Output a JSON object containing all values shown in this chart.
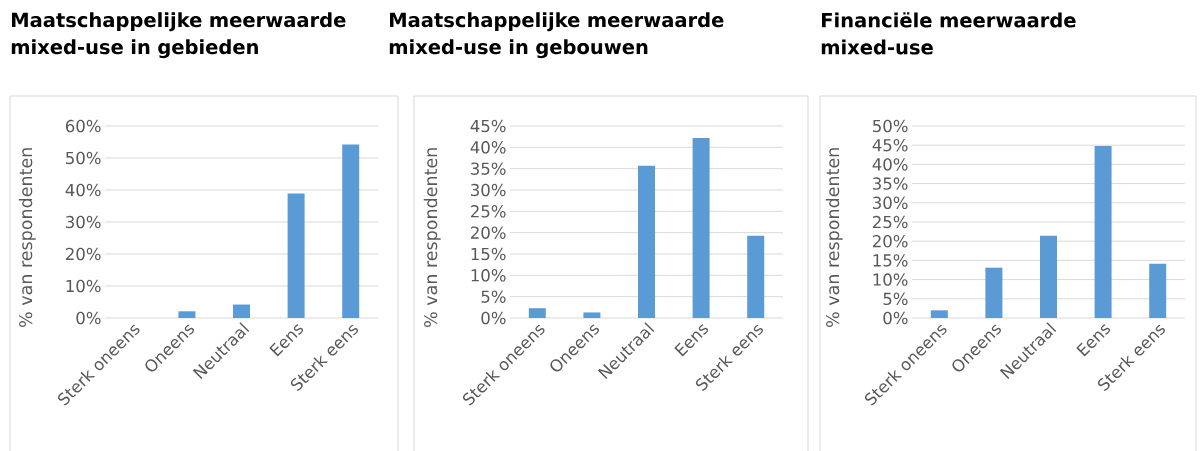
{
  "chart_data": [
    {
      "type": "bar",
      "title": "Maatschappelijke meerwaarde mixed-use in gebieden",
      "ylabel": "% van respondenten",
      "categories": [
        "Sterk oneens",
        "Oneens",
        "Neutraal",
        "Eens",
        "Sterk eens"
      ],
      "values": [
        0,
        2.1,
        4.2,
        38.9,
        54.2
      ],
      "color": "#5b9bd5",
      "ylim": [
        0,
        60
      ],
      "yticks": [
        {
          "value": 0,
          "label": "0%"
        },
        {
          "value": 10,
          "label": "10%"
        },
        {
          "value": 20,
          "label": "20%"
        },
        {
          "value": 30,
          "label": "30%"
        },
        {
          "value": 40,
          "label": "40%"
        },
        {
          "value": 50,
          "label": "50%"
        },
        {
          "value": 60,
          "label": "60%"
        }
      ],
      "grid": "y"
    },
    {
      "type": "bar",
      "title": "Maatschappelijke meerwaarde mixed-use in gebouwen",
      "ylabel": "% van respondenten",
      "categories": [
        "Sterk oneens",
        "Oneens",
        "Neutraal",
        "Eens",
        "Sterk eens"
      ],
      "values": [
        2.3,
        1.3,
        35.7,
        42.2,
        19.3
      ],
      "color": "#5b9bd5",
      "ylim": [
        0,
        45
      ],
      "yticks": [
        {
          "value": 0,
          "label": "0%"
        },
        {
          "value": 5,
          "label": "5%"
        },
        {
          "value": 10,
          "label": "10%"
        },
        {
          "value": 15,
          "label": "15%"
        },
        {
          "value": 20,
          "label": "20%"
        },
        {
          "value": 25,
          "label": "25%"
        },
        {
          "value": 30,
          "label": "30%"
        },
        {
          "value": 35,
          "label": "35%"
        },
        {
          "value": 40,
          "label": "40%"
        },
        {
          "value": 45,
          "label": "45%"
        }
      ],
      "grid": "y"
    },
    {
      "type": "bar",
      "title": "Financiële meerwaarde mixed-use",
      "ylabel": "% van respondenten",
      "categories": [
        "Sterk oneens",
        "Oneens",
        "Neutraal",
        "Eens",
        "Sterk eens"
      ],
      "values": [
        2.0,
        13.1,
        21.4,
        44.8,
        14.1
      ],
      "color": "#5b9bd5",
      "ylim": [
        0,
        50
      ],
      "yticks": [
        {
          "value": 0,
          "label": "0%"
        },
        {
          "value": 5,
          "label": "5%"
        },
        {
          "value": 10,
          "label": "10%"
        },
        {
          "value": 15,
          "label": "15%"
        },
        {
          "value": 20,
          "label": "20%"
        },
        {
          "value": 25,
          "label": "25%"
        },
        {
          "value": 30,
          "label": "30%"
        },
        {
          "value": 35,
          "label": "35%"
        },
        {
          "value": 40,
          "label": "40%"
        },
        {
          "value": 45,
          "label": "45%"
        },
        {
          "value": 50,
          "label": "50%"
        }
      ],
      "grid": "y"
    }
  ]
}
